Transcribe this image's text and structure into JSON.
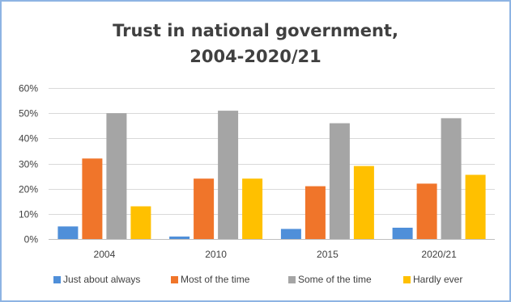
{
  "chart_data": {
    "type": "bar",
    "title_lines": [
      "Trust in national government,",
      "2004-2020/21"
    ],
    "categories": [
      "2004",
      "2010",
      "2015",
      "2020/21"
    ],
    "series": [
      {
        "name": "Just about always",
        "values": [
          5,
          1,
          4,
          4.5
        ],
        "color": "#4f8fd9"
      },
      {
        "name": "Most of the time",
        "values": [
          32,
          24,
          21,
          22
        ],
        "color": "#f0752a"
      },
      {
        "name": "Some of the time",
        "values": [
          50,
          51,
          46,
          48
        ],
        "color": "#a5a5a5"
      },
      {
        "name": "Hardly ever",
        "values": [
          13,
          24,
          29,
          25.5
        ],
        "color": "#ffc000"
      }
    ],
    "ylim": [
      0,
      60
    ],
    "yticks": [
      0,
      10,
      20,
      30,
      40,
      50,
      60
    ],
    "ytick_labels": [
      "0%",
      "10%",
      "20%",
      "30%",
      "40%",
      "50%",
      "60%"
    ],
    "grid": true,
    "legend_position": "bottom"
  }
}
